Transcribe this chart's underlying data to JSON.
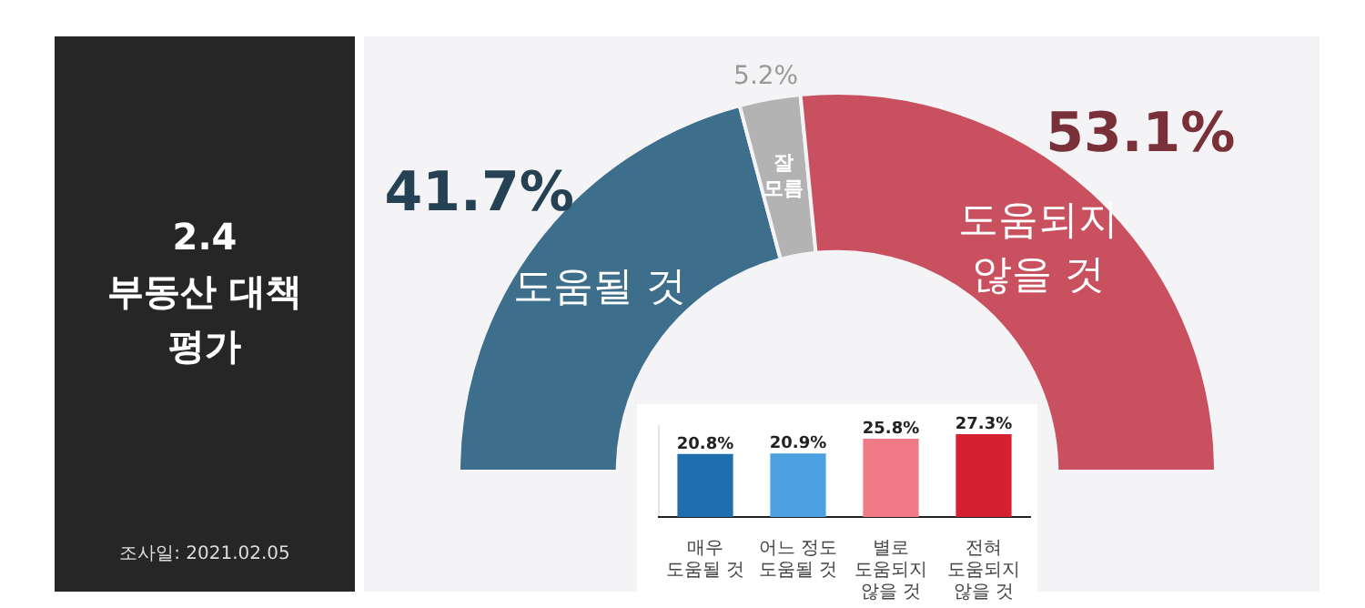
{
  "chart_data": [
    {
      "type": "donut",
      "title": "2.4 부동산 대책 평가",
      "categories": [
        "도움될 것",
        "잘 모름",
        "도움되지 않을 것"
      ],
      "values": [
        41.7,
        5.2,
        53.1
      ],
      "colors": [
        "#3d6e8c",
        "#b3b3b3",
        "#c9505f"
      ],
      "value_labels": [
        "41.7%",
        "5.2%",
        "53.1%"
      ],
      "annotations": [
        "조사일: 2021.02.05"
      ]
    },
    {
      "type": "bar",
      "categories": [
        "매우 도움될 것",
        "어느 정도 도움될 것",
        "별로 도움되지 않을 것",
        "전혀 도움되지 않을 것"
      ],
      "values": [
        20.8,
        20.9,
        25.8,
        27.3
      ],
      "colors": [
        "#1f6fae",
        "#4aa0e0",
        "#f07a85",
        "#d42030"
      ],
      "value_labels": [
        "20.8%",
        "20.9%",
        "25.8%",
        "27.3%"
      ],
      "relative": false
    }
  ]
}
